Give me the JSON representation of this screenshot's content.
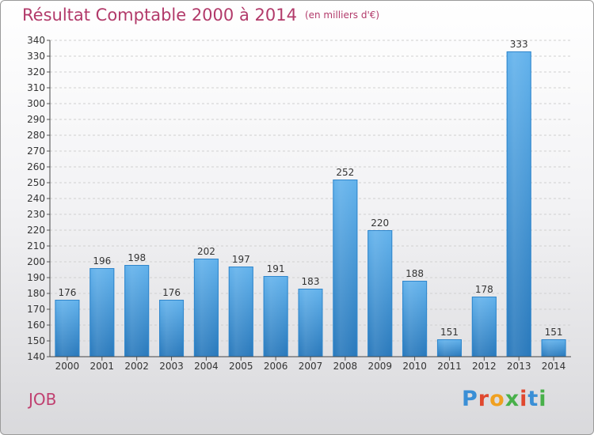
{
  "title": "Résultat Comptable 2000 à 2014",
  "unit_label": "(en milliers d'€)",
  "commune": "JOB",
  "logo_text": "Proxiti",
  "colors": {
    "title": "#b23a6a",
    "bar_top": "#5faee8",
    "bar_bottom": "#2a7fc0",
    "axis": "#333333",
    "grid": "#cccccc"
  },
  "chart_data": {
    "type": "bar",
    "title": "Résultat Comptable 2000 à 2014",
    "xlabel": "",
    "ylabel": "",
    "ylim": [
      140,
      340
    ],
    "ytick_step": 10,
    "categories": [
      "2000",
      "2001",
      "2002",
      "2003",
      "2004",
      "2005",
      "2006",
      "2007",
      "2008",
      "2009",
      "2010",
      "2011",
      "2012",
      "2013",
      "2014"
    ],
    "values": [
      176,
      196,
      198,
      176,
      202,
      197,
      191,
      183,
      252,
      220,
      188,
      151,
      178,
      333,
      151
    ]
  }
}
